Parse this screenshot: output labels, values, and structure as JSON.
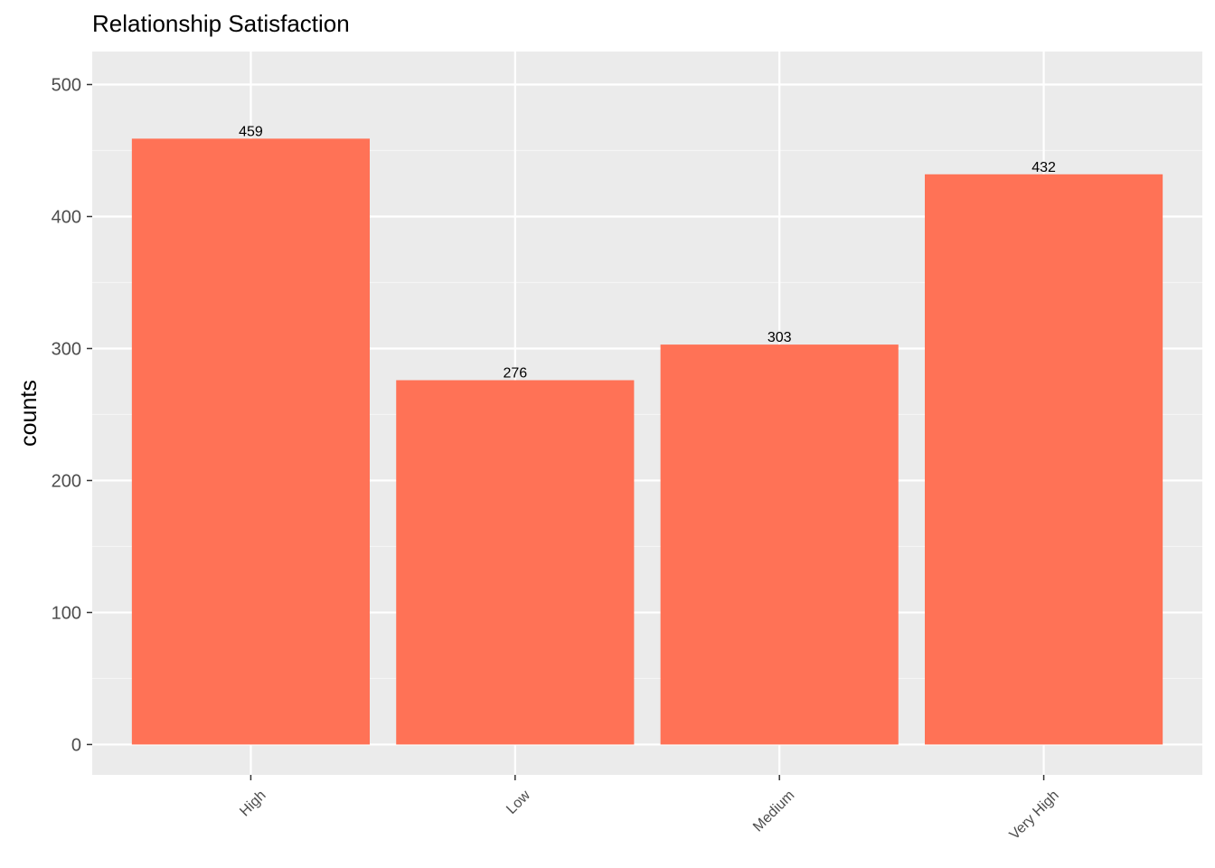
{
  "chart_data": {
    "type": "bar",
    "title": "Relationship Satisfaction",
    "xlabel": "",
    "ylabel": "counts",
    "categories": [
      "High",
      "Low",
      "Medium",
      "Very High"
    ],
    "values": [
      459,
      276,
      303,
      432
    ],
    "data_labels": [
      "459",
      "276",
      "303",
      "432"
    ],
    "y_ticks": [
      0,
      100,
      200,
      300,
      400,
      500
    ],
    "y_tick_labels": [
      "0",
      "100",
      "200",
      "300",
      "400",
      "500"
    ],
    "ylim": [
      -23,
      525
    ],
    "grid": true,
    "legend": "none",
    "colors": {
      "bar": "#ff7256",
      "panel_background": "#ebebeb",
      "grid_major": "#ffffff",
      "grid_minor": "#f5f5f5",
      "tick_text": "#4d4d4d",
      "tick_mark": "#333333"
    }
  }
}
